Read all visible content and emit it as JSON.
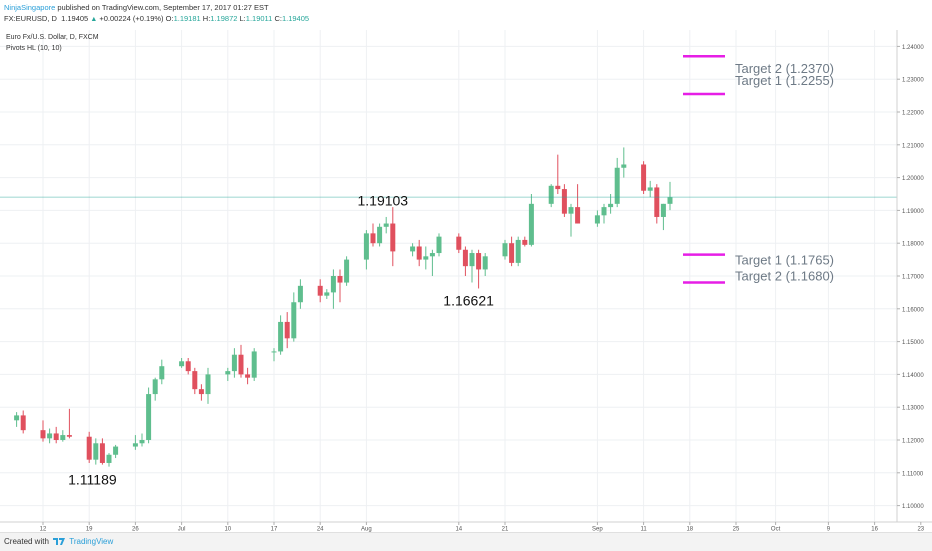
{
  "header": {
    "author": "NinjaSingapore",
    "published_text": "published on TradingView.com, September 17, 2017 01:27 EST",
    "symbol_line": "FX:EURUSD, D",
    "last_price": "1.19405",
    "change": "+0.00224 (+0.19%)",
    "open_label": "O:",
    "open": "1.19181",
    "high_label": "H:",
    "high": "1.19872",
    "low_label": "L:",
    "low": "1.19011",
    "close_label": "C:",
    "close": "1.19405"
  },
  "legend": {
    "instrument": "Euro Fx/U.S. Dollar, D, FXCM",
    "indicator": "Pivots HL (10, 10)"
  },
  "footer": {
    "created_with": "Created with",
    "brand": "TradingView"
  },
  "colors": {
    "up": "#5fbe8e",
    "down": "#e0505e",
    "target": "#e61ee6",
    "price_line": "#26a69a",
    "price_badge": "#2a9a7a",
    "grid": "#eef0f3",
    "axis_text": "#555555"
  },
  "chart_data": {
    "type": "candlestick",
    "symbol": "FX:EURUSD",
    "interval": "D",
    "ylim": [
      1.095,
      1.245
    ],
    "y_ticks": [
      "1.10000",
      "1.11000",
      "1.12000",
      "1.13000",
      "1.14000",
      "1.15000",
      "1.16000",
      "1.17000",
      "1.18000",
      "1.19000",
      "1.20000",
      "1.21000",
      "1.22000",
      "1.23000",
      "1.24000"
    ],
    "x_ticks": [
      "12",
      "19",
      "26",
      "Jul",
      "10",
      "17",
      "24",
      "Aug",
      "14",
      "21",
      "Sep",
      "11",
      "18",
      "25",
      "Oct",
      "9",
      "16",
      "23"
    ],
    "current_price_label": "1.19405",
    "current_price": 1.19405,
    "candles": [
      {
        "d": "2017-06-08",
        "o": 1.126,
        "h": 1.1285,
        "l": 1.124,
        "c": 1.1275
      },
      {
        "d": "2017-06-09",
        "o": 1.1275,
        "h": 1.129,
        "l": 1.122,
        "c": 1.123
      },
      {
        "d": "2017-06-12",
        "o": 1.123,
        "h": 1.126,
        "l": 1.1195,
        "c": 1.1205
      },
      {
        "d": "2017-06-13",
        "o": 1.1205,
        "h": 1.1235,
        "l": 1.119,
        "c": 1.122
      },
      {
        "d": "2017-06-14",
        "o": 1.122,
        "h": 1.124,
        "l": 1.119,
        "c": 1.12
      },
      {
        "d": "2017-06-15",
        "o": 1.12,
        "h": 1.123,
        "l": 1.1195,
        "c": 1.1215
      },
      {
        "d": "2017-06-16",
        "o": 1.1215,
        "h": 1.1295,
        "l": 1.1205,
        "c": 1.121
      },
      {
        "d": "2017-06-19",
        "o": 1.121,
        "h": 1.1225,
        "l": 1.113,
        "c": 1.114
      },
      {
        "d": "2017-06-20",
        "o": 1.114,
        "h": 1.1205,
        "l": 1.1125,
        "c": 1.119
      },
      {
        "d": "2017-06-21",
        "o": 1.119,
        "h": 1.1205,
        "l": 1.1125,
        "c": 1.113
      },
      {
        "d": "2017-06-22",
        "o": 1.113,
        "h": 1.116,
        "l": 1.1119,
        "c": 1.1155
      },
      {
        "d": "2017-06-23",
        "o": 1.1155,
        "h": 1.1185,
        "l": 1.1145,
        "c": 1.118
      },
      {
        "d": "2017-06-26",
        "o": 1.118,
        "h": 1.1215,
        "l": 1.117,
        "c": 1.119
      },
      {
        "d": "2017-06-27",
        "o": 1.119,
        "h": 1.122,
        "l": 1.118,
        "c": 1.12
      },
      {
        "d": "2017-06-28",
        "o": 1.12,
        "h": 1.136,
        "l": 1.119,
        "c": 1.134
      },
      {
        "d": "2017-06-29",
        "o": 1.134,
        "h": 1.139,
        "l": 1.132,
        "c": 1.1385
      },
      {
        "d": "2017-06-30",
        "o": 1.1385,
        "h": 1.1445,
        "l": 1.137,
        "c": 1.1425
      },
      {
        "d": "2017-07-03",
        "o": 1.1425,
        "h": 1.145,
        "l": 1.142,
        "c": 1.144
      },
      {
        "d": "2017-07-04",
        "o": 1.144,
        "h": 1.145,
        "l": 1.14,
        "c": 1.141
      },
      {
        "d": "2017-07-05",
        "o": 1.141,
        "h": 1.142,
        "l": 1.134,
        "c": 1.1355
      },
      {
        "d": "2017-07-06",
        "o": 1.1355,
        "h": 1.137,
        "l": 1.132,
        "c": 1.134
      },
      {
        "d": "2017-07-07",
        "o": 1.134,
        "h": 1.142,
        "l": 1.131,
        "c": 1.14
      },
      {
        "d": "2017-07-10",
        "o": 1.14,
        "h": 1.142,
        "l": 1.138,
        "c": 1.141
      },
      {
        "d": "2017-07-11",
        "o": 1.141,
        "h": 1.148,
        "l": 1.139,
        "c": 1.146
      },
      {
        "d": "2017-07-12",
        "o": 1.146,
        "h": 1.149,
        "l": 1.139,
        "c": 1.14
      },
      {
        "d": "2017-07-13",
        "o": 1.14,
        "h": 1.142,
        "l": 1.137,
        "c": 1.139
      },
      {
        "d": "2017-07-14",
        "o": 1.139,
        "h": 1.148,
        "l": 1.138,
        "c": 1.147
      },
      {
        "d": "2017-07-17",
        "o": 1.147,
        "h": 1.148,
        "l": 1.144,
        "c": 1.147
      },
      {
        "d": "2017-07-18",
        "o": 1.147,
        "h": 1.158,
        "l": 1.146,
        "c": 1.156
      },
      {
        "d": "2017-07-19",
        "o": 1.156,
        "h": 1.159,
        "l": 1.148,
        "c": 1.151
      },
      {
        "d": "2017-07-20",
        "o": 1.151,
        "h": 1.165,
        "l": 1.15,
        "c": 1.162
      },
      {
        "d": "2017-07-21",
        "o": 1.162,
        "h": 1.169,
        "l": 1.16,
        "c": 1.167
      },
      {
        "d": "2017-07-24",
        "o": 1.167,
        "h": 1.169,
        "l": 1.162,
        "c": 1.164
      },
      {
        "d": "2017-07-25",
        "o": 1.164,
        "h": 1.166,
        "l": 1.163,
        "c": 1.165
      },
      {
        "d": "2017-07-26",
        "o": 1.165,
        "h": 1.172,
        "l": 1.16,
        "c": 1.17
      },
      {
        "d": "2017-07-27",
        "o": 1.17,
        "h": 1.172,
        "l": 1.162,
        "c": 1.168
      },
      {
        "d": "2017-07-28",
        "o": 1.168,
        "h": 1.176,
        "l": 1.167,
        "c": 1.175
      },
      {
        "d": "2017-07-31",
        "o": 1.175,
        "h": 1.184,
        "l": 1.172,
        "c": 1.183
      },
      {
        "d": "2017-08-01",
        "o": 1.183,
        "h": 1.186,
        "l": 1.179,
        "c": 1.18
      },
      {
        "d": "2017-08-02",
        "o": 1.18,
        "h": 1.186,
        "l": 1.179,
        "c": 1.185
      },
      {
        "d": "2017-08-03",
        "o": 1.185,
        "h": 1.188,
        "l": 1.183,
        "c": 1.186
      },
      {
        "d": "2017-08-04",
        "o": 1.186,
        "h": 1.191,
        "l": 1.173,
        "c": 1.1775
      },
      {
        "d": "2017-08-07",
        "o": 1.1775,
        "h": 1.18,
        "l": 1.176,
        "c": 1.179
      },
      {
        "d": "2017-08-08",
        "o": 1.179,
        "h": 1.181,
        "l": 1.173,
        "c": 1.175
      },
      {
        "d": "2017-08-09",
        "o": 1.175,
        "h": 1.179,
        "l": 1.172,
        "c": 1.176
      },
      {
        "d": "2017-08-10",
        "o": 1.176,
        "h": 1.178,
        "l": 1.17,
        "c": 1.177
      },
      {
        "d": "2017-08-11",
        "o": 1.177,
        "h": 1.183,
        "l": 1.176,
        "c": 1.182
      },
      {
        "d": "2017-08-14",
        "o": 1.182,
        "h": 1.183,
        "l": 1.177,
        "c": 1.178
      },
      {
        "d": "2017-08-15",
        "o": 1.178,
        "h": 1.179,
        "l": 1.17,
        "c": 1.173
      },
      {
        "d": "2017-08-16",
        "o": 1.173,
        "h": 1.178,
        "l": 1.168,
        "c": 1.177
      },
      {
        "d": "2017-08-17",
        "o": 1.177,
        "h": 1.178,
        "l": 1.1662,
        "c": 1.172
      },
      {
        "d": "2017-08-18",
        "o": 1.172,
        "h": 1.177,
        "l": 1.17,
        "c": 1.176
      },
      {
        "d": "2017-08-21",
        "o": 1.176,
        "h": 1.181,
        "l": 1.175,
        "c": 1.18
      },
      {
        "d": "2017-08-22",
        "o": 1.18,
        "h": 1.182,
        "l": 1.173,
        "c": 1.174
      },
      {
        "d": "2017-08-23",
        "o": 1.174,
        "h": 1.182,
        "l": 1.173,
        "c": 1.181
      },
      {
        "d": "2017-08-24",
        "o": 1.181,
        "h": 1.182,
        "l": 1.179,
        "c": 1.1795
      },
      {
        "d": "2017-08-25",
        "o": 1.1795,
        "h": 1.195,
        "l": 1.179,
        "c": 1.192
      },
      {
        "d": "2017-08-28",
        "o": 1.192,
        "h": 1.198,
        "l": 1.191,
        "c": 1.1975
      },
      {
        "d": "2017-08-29",
        "o": 1.1975,
        "h": 1.207,
        "l": 1.195,
        "c": 1.1965
      },
      {
        "d": "2017-08-30",
        "o": 1.1965,
        "h": 1.198,
        "l": 1.188,
        "c": 1.189
      },
      {
        "d": "2017-08-31",
        "o": 1.189,
        "h": 1.192,
        "l": 1.182,
        "c": 1.191
      },
      {
        "d": "2017-09-01",
        "o": 1.191,
        "h": 1.198,
        "l": 1.186,
        "c": 1.186
      },
      {
        "d": "2017-09-04",
        "o": 1.186,
        "h": 1.19,
        "l": 1.185,
        "c": 1.1885
      },
      {
        "d": "2017-09-05",
        "o": 1.1885,
        "h": 1.192,
        "l": 1.186,
        "c": 1.191
      },
      {
        "d": "2017-09-06",
        "o": 1.191,
        "h": 1.195,
        "l": 1.189,
        "c": 1.192
      },
      {
        "d": "2017-09-07",
        "o": 1.192,
        "h": 1.206,
        "l": 1.191,
        "c": 1.203
      },
      {
        "d": "2017-09-08",
        "o": 1.203,
        "h": 1.2092,
        "l": 1.2,
        "c": 1.204
      },
      {
        "d": "2017-09-11",
        "o": 1.204,
        "h": 1.205,
        "l": 1.195,
        "c": 1.196
      },
      {
        "d": "2017-09-12",
        "o": 1.196,
        "h": 1.199,
        "l": 1.194,
        "c": 1.197
      },
      {
        "d": "2017-09-13",
        "o": 1.197,
        "h": 1.198,
        "l": 1.186,
        "c": 1.188
      },
      {
        "d": "2017-09-14",
        "o": 1.188,
        "h": 1.192,
        "l": 1.184,
        "c": 1.192
      },
      {
        "d": "2017-09-15",
        "o": 1.192,
        "h": 1.1987,
        "l": 1.1901,
        "c": 1.194
      }
    ],
    "annotations": [
      {
        "text": "1.19103",
        "d": "2017-08-04",
        "y": 1.193
      },
      {
        "text": "1.16621",
        "d": "2017-08-17",
        "y": 1.1625
      },
      {
        "text": "1.11189",
        "d": "2017-06-21",
        "y": 1.108
      }
    ],
    "targets": [
      {
        "text": "Target 2 (1.2370)",
        "y": 1.237
      },
      {
        "text": "Target 1 (1.2255)",
        "y": 1.2255
      },
      {
        "text": "Target 1 (1.1765)",
        "y": 1.1765
      },
      {
        "text": "Target 2 (1.1680)",
        "y": 1.168
      }
    ]
  }
}
